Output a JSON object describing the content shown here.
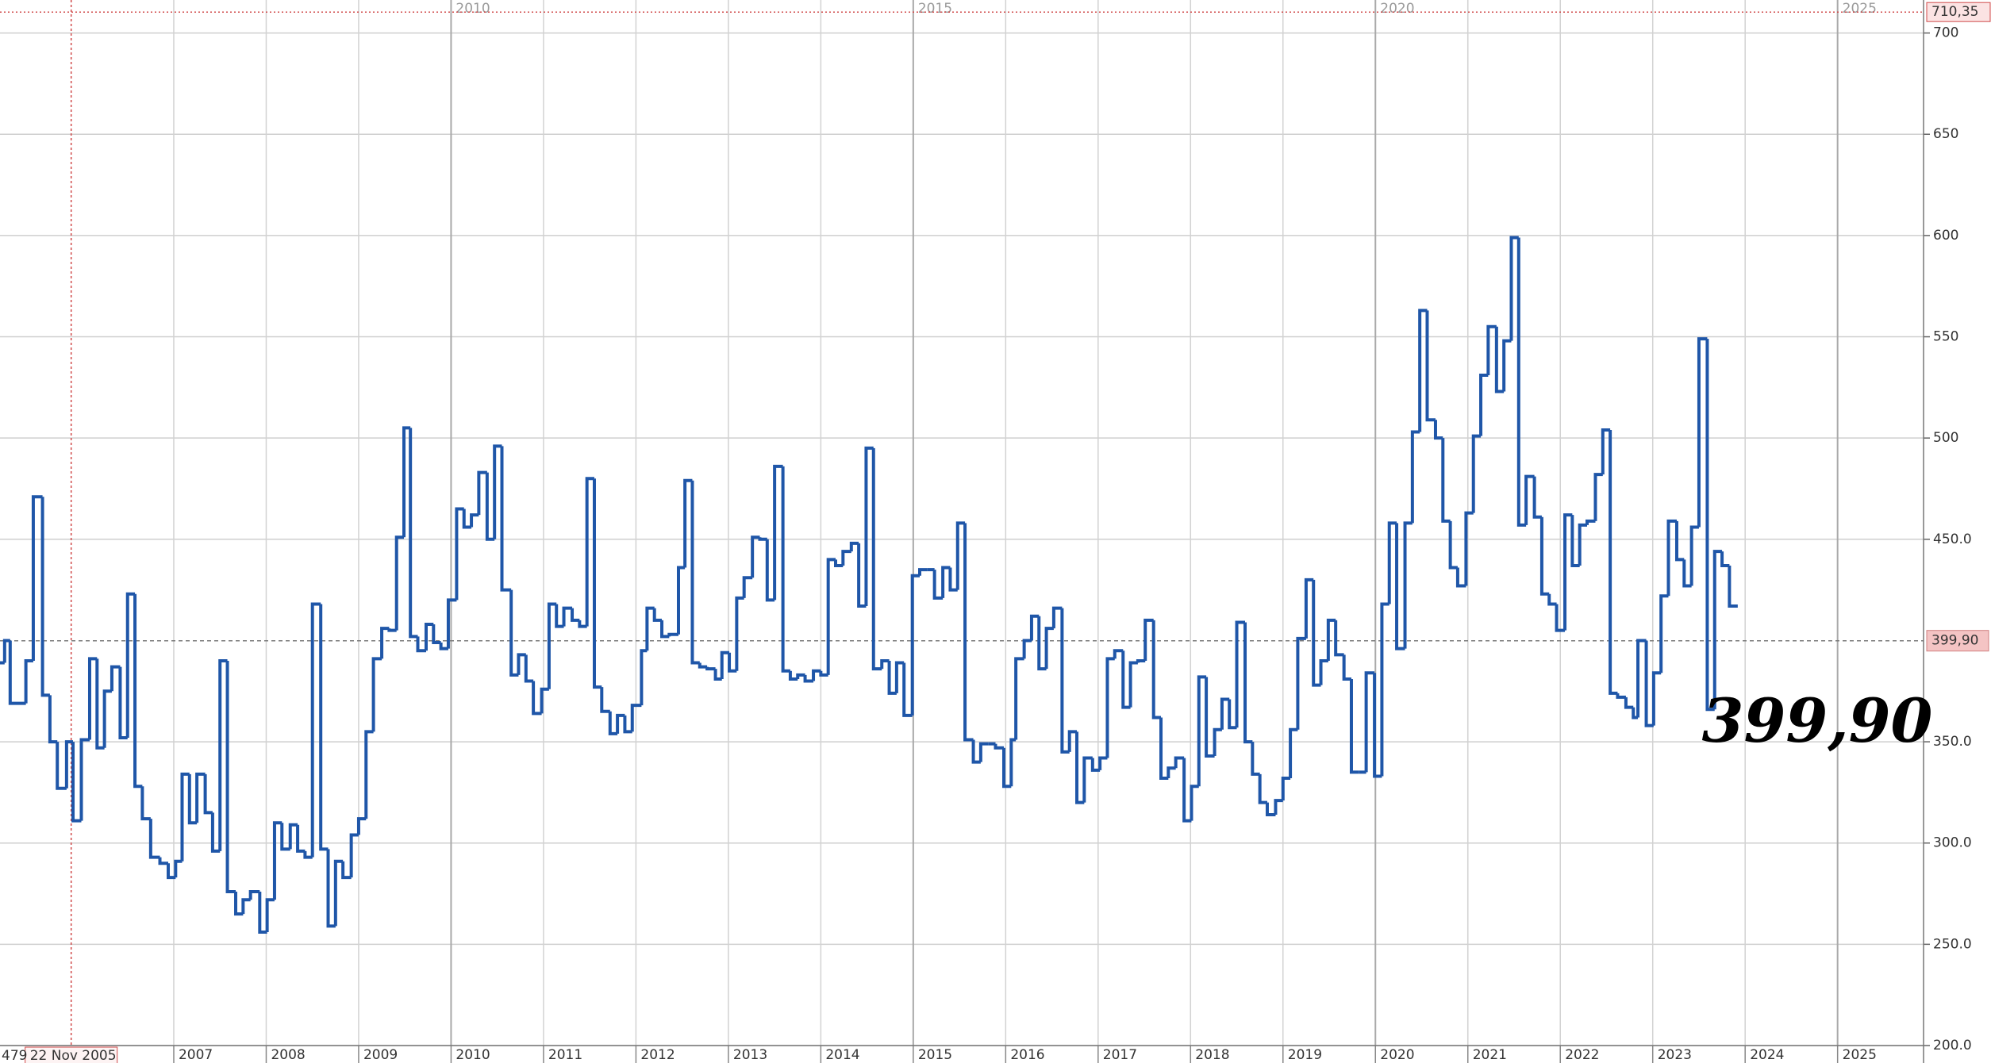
{
  "chart_data": {
    "type": "line",
    "step": "post",
    "grid": true,
    "color": "#1f56a8",
    "x": [
      2005.12,
      2005.17,
      2005.23,
      2005.4,
      2005.48,
      2005.58,
      2005.66,
      2005.74,
      2005.84,
      2005.91,
      2006.0,
      2006.09,
      2006.17,
      2006.25,
      2006.33,
      2006.42,
      2006.5,
      2006.58,
      2006.66,
      2006.75,
      2006.85,
      2006.94,
      2007.02,
      2007.09,
      2007.17,
      2007.25,
      2007.34,
      2007.42,
      2007.5,
      2007.58,
      2007.67,
      2007.75,
      2007.83,
      2007.93,
      2008.01,
      2008.09,
      2008.17,
      2008.26,
      2008.34,
      2008.42,
      2008.5,
      2008.59,
      2008.67,
      2008.75,
      2008.83,
      2008.92,
      2009.0,
      2009.08,
      2009.16,
      2009.25,
      2009.33,
      2009.41,
      2009.49,
      2009.56,
      2009.64,
      2009.73,
      2009.81,
      2009.89,
      2009.97,
      2010.06,
      2010.14,
      2010.22,
      2010.3,
      2010.39,
      2010.47,
      2010.55,
      2010.65,
      2010.73,
      2010.81,
      2010.89,
      2010.98,
      2011.06,
      2011.14,
      2011.22,
      2011.31,
      2011.39,
      2011.47,
      2011.55,
      2011.63,
      2011.72,
      2011.8,
      2011.88,
      2011.96,
      2012.06,
      2012.12,
      2012.2,
      2012.28,
      2012.36,
      2012.46,
      2012.53,
      2012.61,
      2012.69,
      2012.77,
      2012.86,
      2012.93,
      2013.01,
      2013.09,
      2013.17,
      2013.26,
      2013.34,
      2013.42,
      2013.5,
      2013.59,
      2013.67,
      2013.75,
      2013.83,
      2013.92,
      2014.0,
      2014.08,
      2014.16,
      2014.24,
      2014.33,
      2014.41,
      2014.49,
      2014.57,
      2014.66,
      2014.74,
      2014.82,
      2014.9,
      2014.99,
      2015.07,
      2015.15,
      2015.23,
      2015.32,
      2015.4,
      2015.48,
      2015.56,
      2015.65,
      2015.73,
      2015.81,
      2015.89,
      2015.98,
      2016.06,
      2016.11,
      2016.2,
      2016.28,
      2016.36,
      2016.44,
      2016.52,
      2016.61,
      2016.69,
      2016.77,
      2016.85,
      2016.94,
      2017.02,
      2017.1,
      2017.18,
      2017.27,
      2017.35,
      2017.43,
      2017.51,
      2017.6,
      2017.68,
      2017.76,
      2017.84,
      2017.93,
      2018.01,
      2018.09,
      2018.17,
      2018.26,
      2018.34,
      2018.42,
      2018.5,
      2018.59,
      2018.67,
      2018.75,
      2018.83,
      2018.92,
      2019.0,
      2019.08,
      2019.16,
      2019.25,
      2019.33,
      2019.41,
      2019.49,
      2019.57,
      2019.66,
      2019.74,
      2019.82,
      2019.9,
      2019.99,
      2020.07,
      2020.15,
      2020.23,
      2020.32,
      2020.4,
      2020.48,
      2020.56,
      2020.65,
      2020.73,
      2020.81,
      2020.89,
      2020.98,
      2021.06,
      2021.14,
      2021.22,
      2021.31,
      2021.39,
      2021.47,
      2021.55,
      2021.63,
      2021.72,
      2021.8,
      2021.88,
      2021.96,
      2022.05,
      2022.13,
      2022.21,
      2022.29,
      2022.38,
      2022.46,
      2022.54,
      2022.62,
      2022.71,
      2022.79,
      2022.84,
      2022.93,
      2023.01,
      2023.09,
      2023.17,
      2023.26,
      2023.34,
      2023.42,
      2023.5,
      2023.59,
      2023.67,
      2023.75,
      2023.83,
      2023.92
    ],
    "values": [
      389,
      400,
      369,
      390,
      471,
      373,
      350,
      327,
      350,
      311,
      351,
      391,
      347,
      375,
      387,
      352,
      423,
      328,
      312,
      293,
      290,
      283,
      291,
      334,
      310,
      334,
      315,
      296,
      390,
      276,
      265,
      272,
      276,
      256,
      272,
      310,
      297,
      309,
      296,
      293,
      418,
      297,
      259,
      291,
      283,
      304,
      312,
      355,
      391,
      406,
      405,
      451,
      505,
      402,
      395,
      408,
      399,
      396,
      420,
      465,
      456,
      462,
      483,
      450,
      496,
      425,
      383,
      393,
      380,
      364,
      376,
      418,
      407,
      416,
      410,
      407,
      480,
      377,
      365,
      354,
      363,
      355,
      368,
      395,
      416,
      410,
      402,
      403,
      436,
      479,
      389,
      387,
      386,
      381,
      394,
      385,
      421,
      431,
      451,
      450,
      420,
      486,
      385,
      381,
      383,
      380,
      385,
      383,
      440,
      437,
      444,
      448,
      417,
      495,
      386,
      390,
      374,
      389,
      363,
      432,
      435,
      435,
      421,
      436,
      425,
      458,
      351,
      340,
      349,
      349,
      347,
      328,
      351,
      391,
      400,
      412,
      386,
      406,
      416,
      345,
      355,
      320,
      342,
      336,
      342,
      391,
      395,
      367,
      389,
      390,
      410,
      362,
      332,
      337,
      342,
      311,
      328,
      382,
      343,
      356,
      371,
      357,
      409,
      350,
      334,
      320,
      314,
      321,
      332,
      356,
      401,
      430,
      378,
      390,
      410,
      393,
      381,
      335,
      335,
      384,
      333,
      418,
      458,
      396,
      458,
      503,
      563,
      509,
      500,
      459,
      436,
      427,
      463,
      501,
      531,
      555,
      523,
      548,
      599,
      457,
      481,
      461,
      423,
      418,
      405,
      462,
      437,
      457,
      459,
      482,
      504,
      374,
      372,
      367,
      362,
      400,
      358,
      384,
      422,
      459,
      440,
      427,
      456,
      549,
      366,
      444,
      437,
      417,
      417
    ],
    "xlim": [
      2005.12,
      2025.93
    ],
    "ylim": [
      200,
      716.3
    ],
    "xticks": [
      2007,
      2008,
      2009,
      2010,
      2011,
      2012,
      2013,
      2014,
      2015,
      2016,
      2017,
      2018,
      2019,
      2020,
      2021,
      2022,
      2023,
      2024,
      2025
    ],
    "xticks_top": [
      2010,
      2015,
      2020,
      2025
    ],
    "yticks": [
      {
        "value": 200,
        "label": "200.0"
      },
      {
        "value": 250,
        "label": "250.0"
      },
      {
        "value": 300,
        "label": "300.0"
      },
      {
        "value": 350,
        "label": "350.0"
      },
      {
        "value": 450,
        "label": "450.0"
      },
      500,
      550,
      600,
      650,
      700
    ],
    "last_price": {
      "value": 399.9,
      "label": "399,90"
    },
    "high_price": {
      "value": 710.35,
      "label": "710,35"
    },
    "cursor": {
      "value": 2005.89,
      "label": "22 Nov 2005"
    },
    "cursor_value_fragment": "479",
    "annotation": "399,90"
  }
}
